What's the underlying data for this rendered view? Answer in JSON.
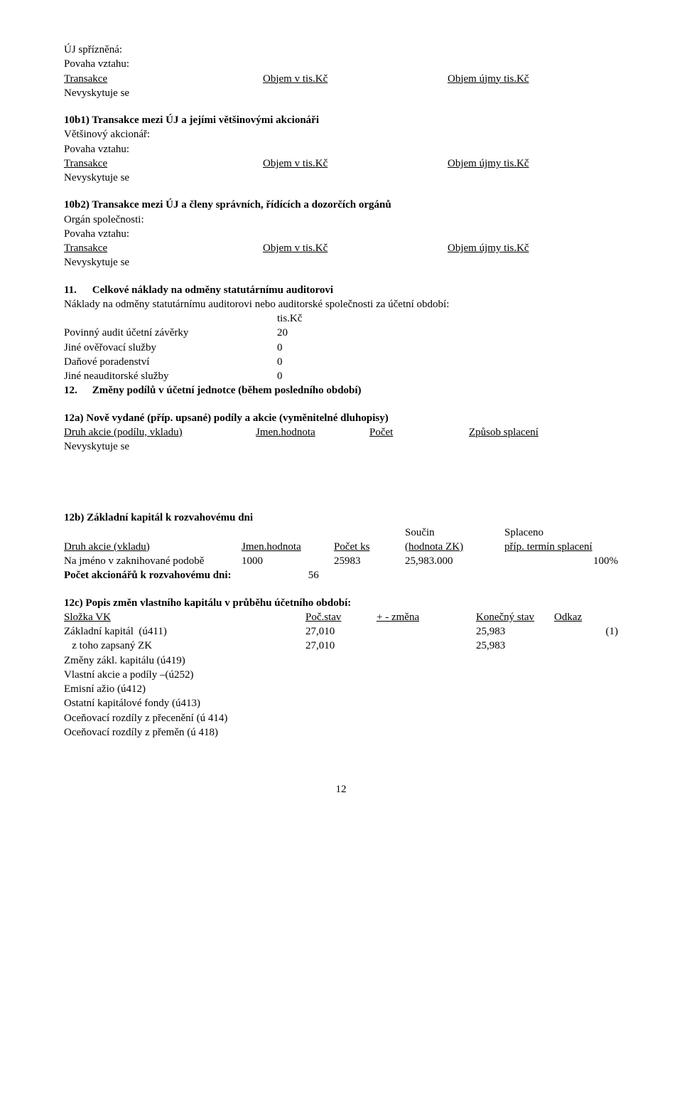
{
  "block1": {
    "l1": "ÚJ spřízněná:",
    "l2": "Povaha vztahu:",
    "row_l": "Transakce",
    "row_m": "Objem v tis.Kč",
    "row_r": "Objem újmy tis.Kč",
    "nv": "Nevyskytuje se"
  },
  "s10b1": {
    "title": "10b1)  Transakce mezi ÚJ a jejími většinovými akcionáři",
    "l1": "Většinový akcionář:",
    "l2": "Povaha vztahu:",
    "row_l": "Transakce",
    "row_m": "Objem v tis.Kč",
    "row_r": "Objem újmy tis.Kč",
    "nv": "Nevyskytuje se"
  },
  "s10b2": {
    "title": "10b2)  Transakce mezi ÚJ a členy správních, řídících a dozorčích orgánů",
    "l1": "Orgán společnosti:",
    "l2": "Povaha vztahu:",
    "row_l": "Transakce",
    "row_m": "Objem v tis.Kč",
    "row_r": "Objem újmy tis.Kč",
    "nv": "Nevyskytuje se"
  },
  "s11": {
    "num": "11.",
    "title": "Celkové náklady na odměny statutárnímu auditorovi",
    "intro": "Náklady na odměny statutárnímu auditorovi nebo auditorské společnosti za účetní období:",
    "unit": "tis.Kč",
    "r1_label": "Povinný audit účetní závěrky",
    "r1_val": "20",
    "r2_label": "Jiné ověřovací služby",
    "r2_val": "0",
    "r3_label": "Daňové poradenství",
    "r3_val": "0",
    "r4_label": "Jiné neauditorské služby",
    "r4_val": "0"
  },
  "s12": {
    "num": "12.",
    "title": "Změny podílů v účetní jednotce (během posledního období)"
  },
  "s12a": {
    "title": "12a)  Nově vydané  (příp. upsané) podíly a akcie (vyměnitelné dluhopisy)",
    "h1": "Druh akcie (podílu, vkladu)",
    "h2": "Jmen.hodnota",
    "h3": "Počet",
    "h4": "Způsob splacení",
    "nv": "Nevyskytuje se"
  },
  "s12b": {
    "title": "12b)  Základní kapitál k rozvahovému dni",
    "sh1": "Součin",
    "sh2": "Splaceno",
    "h1": "Druh akcie (vkladu)",
    "h2": "Jmen.hodnota",
    "h3": "Počet ks",
    "h4": "(hodnota ZK)",
    "h5": "příp.  termín splacení",
    "r1_c1": "Na jméno v zaknihované podobě",
    "r1_c2": "1000",
    "r1_c3": "25983",
    "r1_c4": "25,983.000",
    "r1_c5": "100%",
    "r2_label": "Počet akcionářů k rozvahovému dni:",
    "r2_val": "56"
  },
  "s12c": {
    "title": "12c)  Popis změn vlastního kapitálu v průběhu účetního období:",
    "h1": "Složka VK",
    "h2": "Poč.stav",
    "h3": "+ - změna",
    "h4": "Konečný stav",
    "h5": "Odkaz",
    "rows": [
      {
        "c1": "Základní kapitál  (ú411)",
        "c2": "27,010",
        "c3": "",
        "c4": "25,983",
        "c5": "(1)"
      },
      {
        "c1": "   z toho zapsaný ZK",
        "c2": "27,010",
        "c3": "",
        "c4": "25,983",
        "c5": ""
      },
      {
        "c1": "Změny zákl. kapitálu (ú419)",
        "c2": "",
        "c3": "",
        "c4": "",
        "c5": ""
      },
      {
        "c1": "Vlastní akcie a podíly –(ú252)",
        "c2": "",
        "c3": "",
        "c4": "",
        "c5": ""
      },
      {
        "c1": "Emisní ažio (ú412)",
        "c2": "",
        "c3": "",
        "c4": "",
        "c5": ""
      },
      {
        "c1": "Ostatní kapitálové fondy (ú413)",
        "c2": "",
        "c3": "",
        "c4": "",
        "c5": ""
      },
      {
        "c1": "Oceňovací rozdíly z přecenění (ú 414)",
        "c2": "",
        "c3": "",
        "c4": "",
        "c5": ""
      },
      {
        "c1": "Oceňovací rozdíly z přeměn (ú 418)",
        "c2": "",
        "c3": "",
        "c4": "",
        "c5": ""
      }
    ]
  },
  "page_number": "12"
}
